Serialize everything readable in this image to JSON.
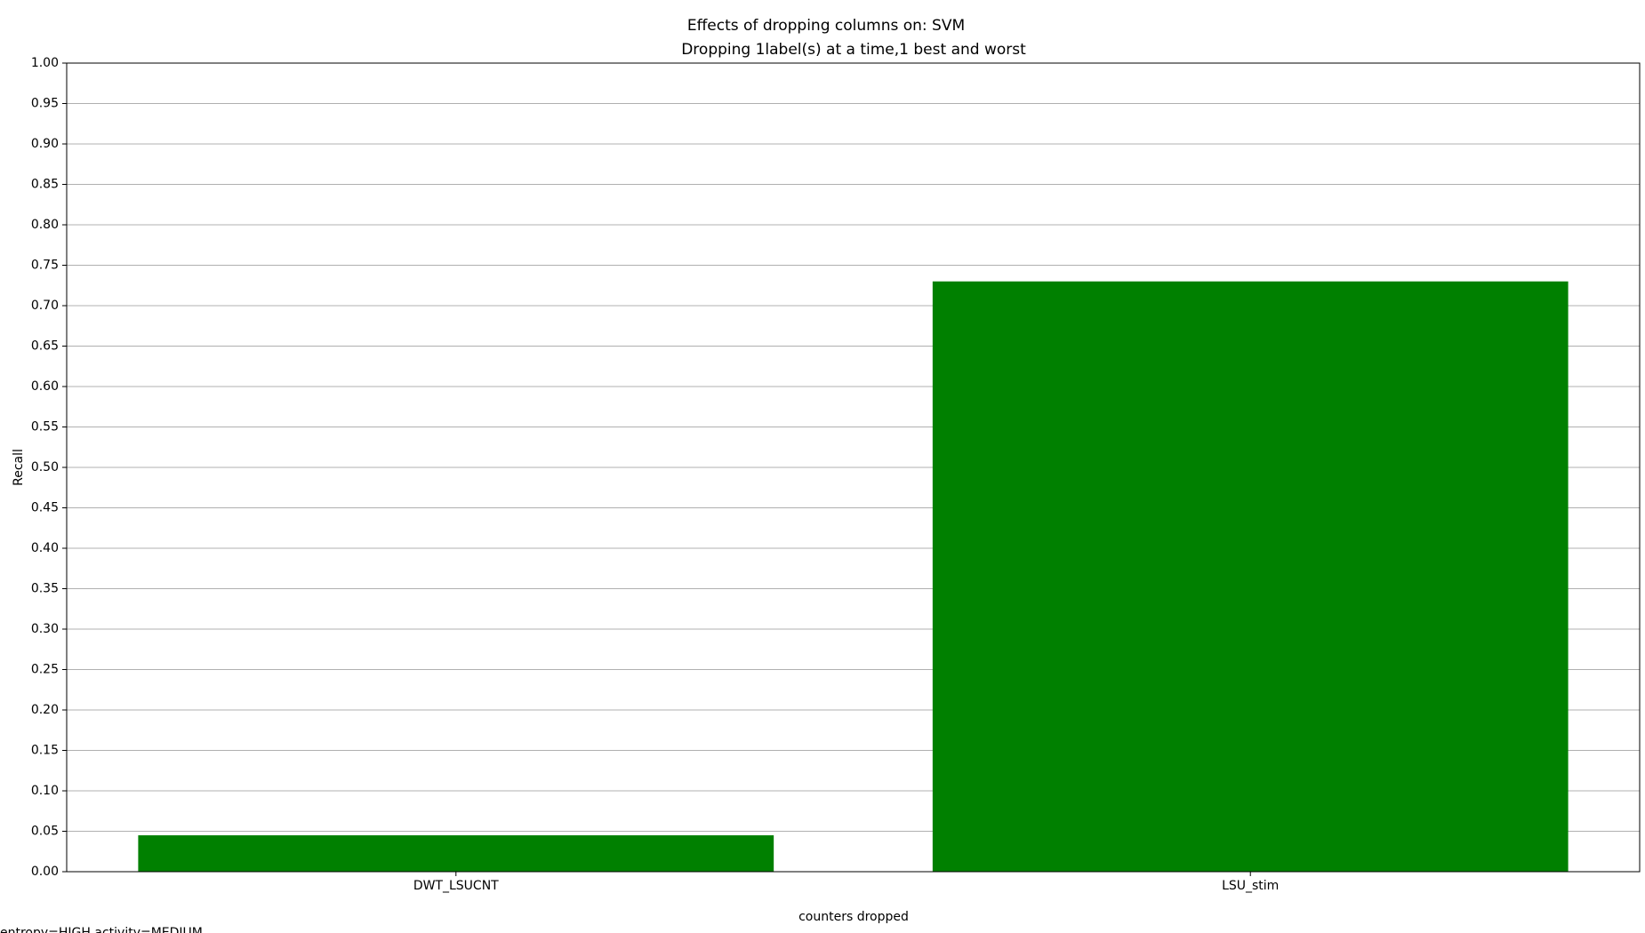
{
  "chart_data": {
    "type": "bar",
    "title": "Effects of dropping columns on: SVM",
    "subtitle": "Dropping 1label(s) at a time,1 best and worst",
    "x_label": "counters dropped",
    "y_label": "Recall",
    "annotation": "entropy=HIGH,activity=MEDIUM,",
    "categories": [
      "DWT_LSUCNT",
      "LSU_stim"
    ],
    "values": [
      0.045,
      0.73
    ],
    "color": "#008000",
    "ylim": [
      0,
      1
    ],
    "yticks": [
      {
        "value": 0,
        "label": "0.00"
      },
      {
        "value": 0.05,
        "label": "0.05"
      },
      {
        "value": 0.1,
        "label": "0.10"
      },
      {
        "value": 0.15,
        "label": "0.15"
      },
      {
        "value": 0.2,
        "label": "0.20"
      },
      {
        "value": 0.25,
        "label": "0.25"
      },
      {
        "value": 0.3,
        "label": "0.30"
      },
      {
        "value": 0.35,
        "label": "0.35"
      },
      {
        "value": 0.4,
        "label": "0.40"
      },
      {
        "value": 0.45,
        "label": "0.45"
      },
      {
        "value": 0.5,
        "label": "0.50"
      },
      {
        "value": 0.55,
        "label": "0.55"
      },
      {
        "value": 0.6,
        "label": "0.60"
      },
      {
        "value": 0.65,
        "label": "0.65"
      },
      {
        "value": 0.7,
        "label": "0.70"
      },
      {
        "value": 0.75,
        "label": "0.75"
      },
      {
        "value": 0.8,
        "label": "0.80"
      },
      {
        "value": 0.85,
        "label": "0.85"
      },
      {
        "value": 0.9,
        "label": "0.90"
      },
      {
        "value": 0.95,
        "label": "0.95"
      },
      {
        "value": 1,
        "label": "1.00"
      }
    ],
    "grid": true
  }
}
